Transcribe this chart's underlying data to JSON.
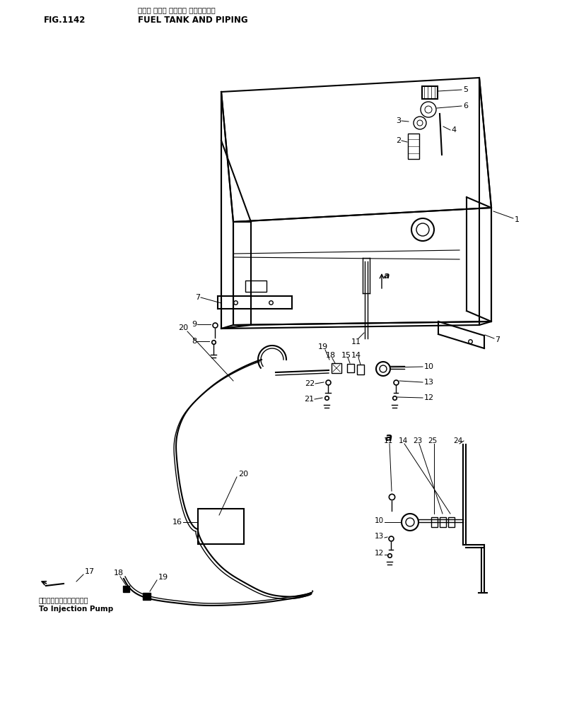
{
  "fig_number": "FIG.1142",
  "title_jp": "フェル タンク オヤビー パイピングー",
  "title_en": "FUEL TANK AND PIPING",
  "injection_pump_jp": "インジェクションポンプへ",
  "injection_pump_en": "To Injection Pump",
  "bg_color": "#ffffff",
  "line_color": "#000000"
}
